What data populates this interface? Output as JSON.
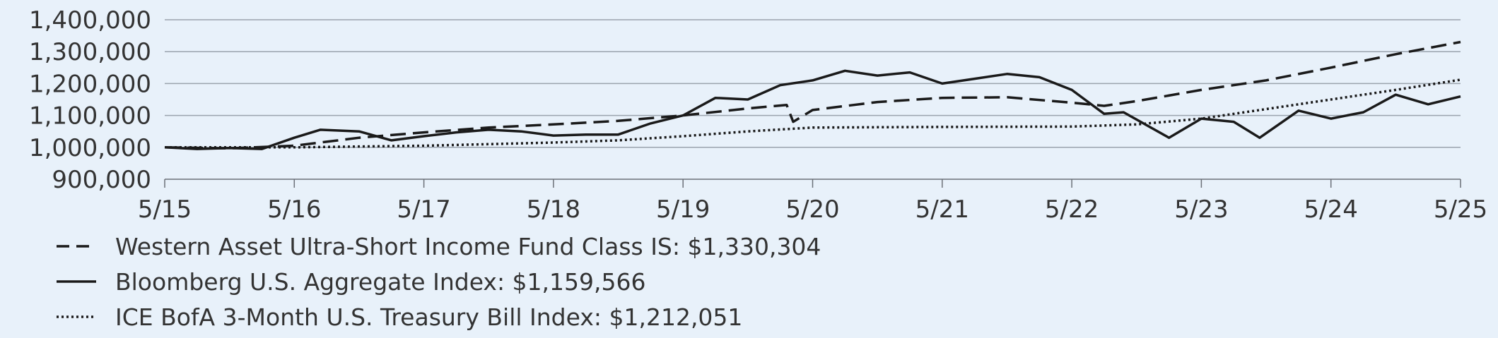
{
  "chart_data": {
    "type": "line",
    "title": "",
    "xlabel": "",
    "ylabel": "",
    "x_ticks": [
      "5/15",
      "5/16",
      "5/17",
      "5/18",
      "5/19",
      "5/20",
      "5/21",
      "5/22",
      "5/23",
      "5/24",
      "5/25"
    ],
    "x_range": [
      0,
      10
    ],
    "ylim": [
      900000,
      1400000
    ],
    "y_ticks": [
      900000,
      1000000,
      1100000,
      1200000,
      1300000,
      1400000
    ],
    "y_tick_labels": [
      "900,000",
      "1,000,000",
      "1,100,000",
      "1,200,000",
      "1,300,000",
      "1,400,000"
    ],
    "grid": "horizontal",
    "legend_position": "bottom",
    "series": [
      {
        "name": "Western Asset Ultra-Short Income Fund Class IS: $1,330,304",
        "style": "dashed",
        "x": [
          0,
          0.5,
          1,
          1.5,
          2,
          2.5,
          3,
          3.5,
          4,
          4.5,
          4.8,
          4.85,
          5,
          5.5,
          6,
          6.5,
          7,
          7.25,
          7.5,
          8,
          8.5,
          9,
          9.5,
          10
        ],
        "values": [
          1000000,
          997000,
          1005000,
          1030000,
          1047000,
          1062000,
          1072000,
          1083000,
          1100000,
          1122000,
          1133000,
          1080000,
          1117000,
          1142000,
          1155000,
          1157000,
          1140000,
          1130000,
          1145000,
          1180000,
          1210000,
          1250000,
          1292000,
          1330304
        ]
      },
      {
        "name": "Bloomberg U.S. Aggregate Index: $1,159,566",
        "style": "solid",
        "x": [
          0,
          0.25,
          0.5,
          0.75,
          1,
          1.2,
          1.5,
          1.75,
          2,
          2.25,
          2.5,
          2.75,
          3,
          3.25,
          3.5,
          3.75,
          4,
          4.25,
          4.5,
          4.75,
          5,
          5.25,
          5.5,
          5.75,
          6,
          6.25,
          6.5,
          6.75,
          7,
          7.25,
          7.4,
          7.75,
          8,
          8.25,
          8.45,
          8.75,
          9,
          9.25,
          9.5,
          9.75,
          10
        ],
        "values": [
          1000000,
          995000,
          998000,
          995000,
          1030000,
          1055000,
          1050000,
          1022000,
          1035000,
          1047000,
          1055000,
          1050000,
          1037000,
          1040000,
          1040000,
          1075000,
          1100000,
          1155000,
          1150000,
          1195000,
          1210000,
          1240000,
          1225000,
          1235000,
          1200000,
          1215000,
          1230000,
          1220000,
          1180000,
          1105000,
          1110000,
          1030000,
          1090000,
          1080000,
          1030000,
          1115000,
          1090000,
          1110000,
          1165000,
          1135000,
          1159566
        ]
      },
      {
        "name": "ICE BofA 3-Month U.S. Treasury Bill Index: $1,212,051",
        "style": "dotted",
        "x": [
          0,
          1,
          2,
          2.5,
          3,
          3.5,
          4,
          4.5,
          5,
          5.5,
          6,
          6.5,
          7,
          7.5,
          8,
          8.5,
          9,
          9.5,
          10
        ],
        "values": [
          1000000,
          1000000,
          1005000,
          1010000,
          1015000,
          1022000,
          1035000,
          1050000,
          1062000,
          1063000,
          1064000,
          1064500,
          1065000,
          1072000,
          1090000,
          1120000,
          1150000,
          1180000,
          1212051
        ]
      }
    ]
  }
}
